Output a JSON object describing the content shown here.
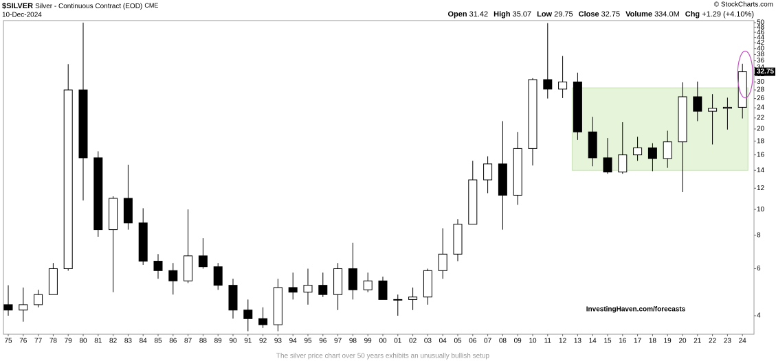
{
  "header": {
    "symbol": "$SILVER",
    "name": "Silver - Continuous Contract (EOD)",
    "exchange": "CME",
    "date": "10-Dec-2024",
    "credit": "© StockCharts.com",
    "quote": [
      {
        "label": "Open",
        "value": "31.42"
      },
      {
        "label": "High",
        "value": "35.07"
      },
      {
        "label": "Low",
        "value": "29.75"
      },
      {
        "label": "Close",
        "value": "32.75"
      },
      {
        "label": "Volume",
        "value": "334.0M"
      },
      {
        "label": "Chg",
        "value": "+1.29 (+4.10%)"
      }
    ]
  },
  "chart_data": {
    "type": "candlestick",
    "categories": [
      "75",
      "76",
      "77",
      "78",
      "79",
      "80",
      "81",
      "82",
      "83",
      "84",
      "85",
      "86",
      "87",
      "88",
      "89",
      "90",
      "91",
      "92",
      "93",
      "94",
      "95",
      "96",
      "97",
      "98",
      "99",
      "00",
      "01",
      "02",
      "03",
      "04",
      "05",
      "06",
      "07",
      "08",
      "09",
      "10",
      "11",
      "12",
      "13",
      "14",
      "15",
      "16",
      "17",
      "18",
      "19",
      "20",
      "21",
      "22",
      "23",
      "24"
    ],
    "open": [
      4.4,
      4.2,
      4.4,
      4.8,
      6.0,
      28,
      15.6,
      8.4,
      11.0,
      8.9,
      6.4,
      5.9,
      5.4,
      6.7,
      6.1,
      5.2,
      4.2,
      3.9,
      3.7,
      5.1,
      4.9,
      5.2,
      4.8,
      6.0,
      5.0,
      5.4,
      4.6,
      4.6,
      4.7,
      5.9,
      6.8,
      8.8,
      12.9,
      14.8,
      11.3,
      16.9,
      30.6,
      28.2,
      30.0,
      19.5,
      15.6,
      13.8,
      16.0,
      17.0,
      15.5,
      17.9,
      26.4,
      23.3,
      23.9,
      24.1
    ],
    "high": [
      5.2,
      5.1,
      5.0,
      6.3,
      35,
      50,
      16.5,
      11.2,
      14.7,
      10.1,
      6.8,
      6.3,
      10.0,
      7.8,
      6.3,
      5.5,
      4.6,
      4.3,
      5.5,
      5.8,
      6.0,
      5.8,
      6.3,
      7.5,
      5.8,
      5.6,
      4.8,
      5.1,
      6.0,
      8.5,
      9.2,
      15.2,
      15.8,
      21.4,
      19.5,
      31.0,
      49.8,
      37.5,
      32.5,
      22.2,
      18.5,
      21.2,
      18.7,
      17.7,
      19.7,
      29.9,
      30.1,
      27.0,
      26.2,
      35.1
    ],
    "low": [
      4.0,
      3.8,
      4.3,
      4.8,
      5.9,
      10.8,
      7.9,
      4.9,
      8.4,
      6.2,
      5.5,
      4.8,
      5.3,
      6.0,
      5.0,
      3.9,
      3.5,
      3.6,
      3.5,
      4.6,
      4.4,
      4.7,
      4.2,
      4.6,
      4.9,
      4.6,
      4.0,
      4.2,
      4.4,
      5.5,
      6.4,
      8.8,
      11.5,
      8.4,
      10.4,
      14.6,
      26.0,
      26.1,
      18.2,
      14.5,
      13.6,
      13.6,
      15.2,
      13.9,
      14.3,
      11.6,
      21.4,
      17.5,
      19.9,
      21.9
    ],
    "close": [
      4.2,
      4.4,
      4.8,
      6.0,
      28,
      15.6,
      8.4,
      11.0,
      8.9,
      6.4,
      5.9,
      5.4,
      6.7,
      6.1,
      5.2,
      4.2,
      3.9,
      3.7,
      5.1,
      4.9,
      5.2,
      4.8,
      6.0,
      5.0,
      5.4,
      4.6,
      4.6,
      4.7,
      5.9,
      6.8,
      8.8,
      12.9,
      14.8,
      11.3,
      16.9,
      30.6,
      28.2,
      30.0,
      19.5,
      15.6,
      13.8,
      16.0,
      17.0,
      15.5,
      17.9,
      26.4,
      23.3,
      23.9,
      24.1,
      32.75
    ],
    "up_color": "#ffffff",
    "down_color": "#000000",
    "log_scale": true,
    "ylim": [
      3.41,
      50.9
    ],
    "yticks": [
      4,
      6,
      8,
      10,
      12,
      14,
      16,
      18,
      20,
      22,
      24,
      26,
      28,
      30,
      32,
      34,
      36,
      38,
      40,
      42,
      44,
      46,
      48,
      50
    ],
    "last_price": 32.75,
    "shaded_band": {
      "x": [
        "13",
        "24"
      ],
      "y": [
        14,
        28.5
      ],
      "color": "#e6f5d9"
    },
    "watermark": "InvestingHaven.com/forecasts",
    "caption": "The silver price chart over 50 years exhibits an unusually bullish setup"
  }
}
